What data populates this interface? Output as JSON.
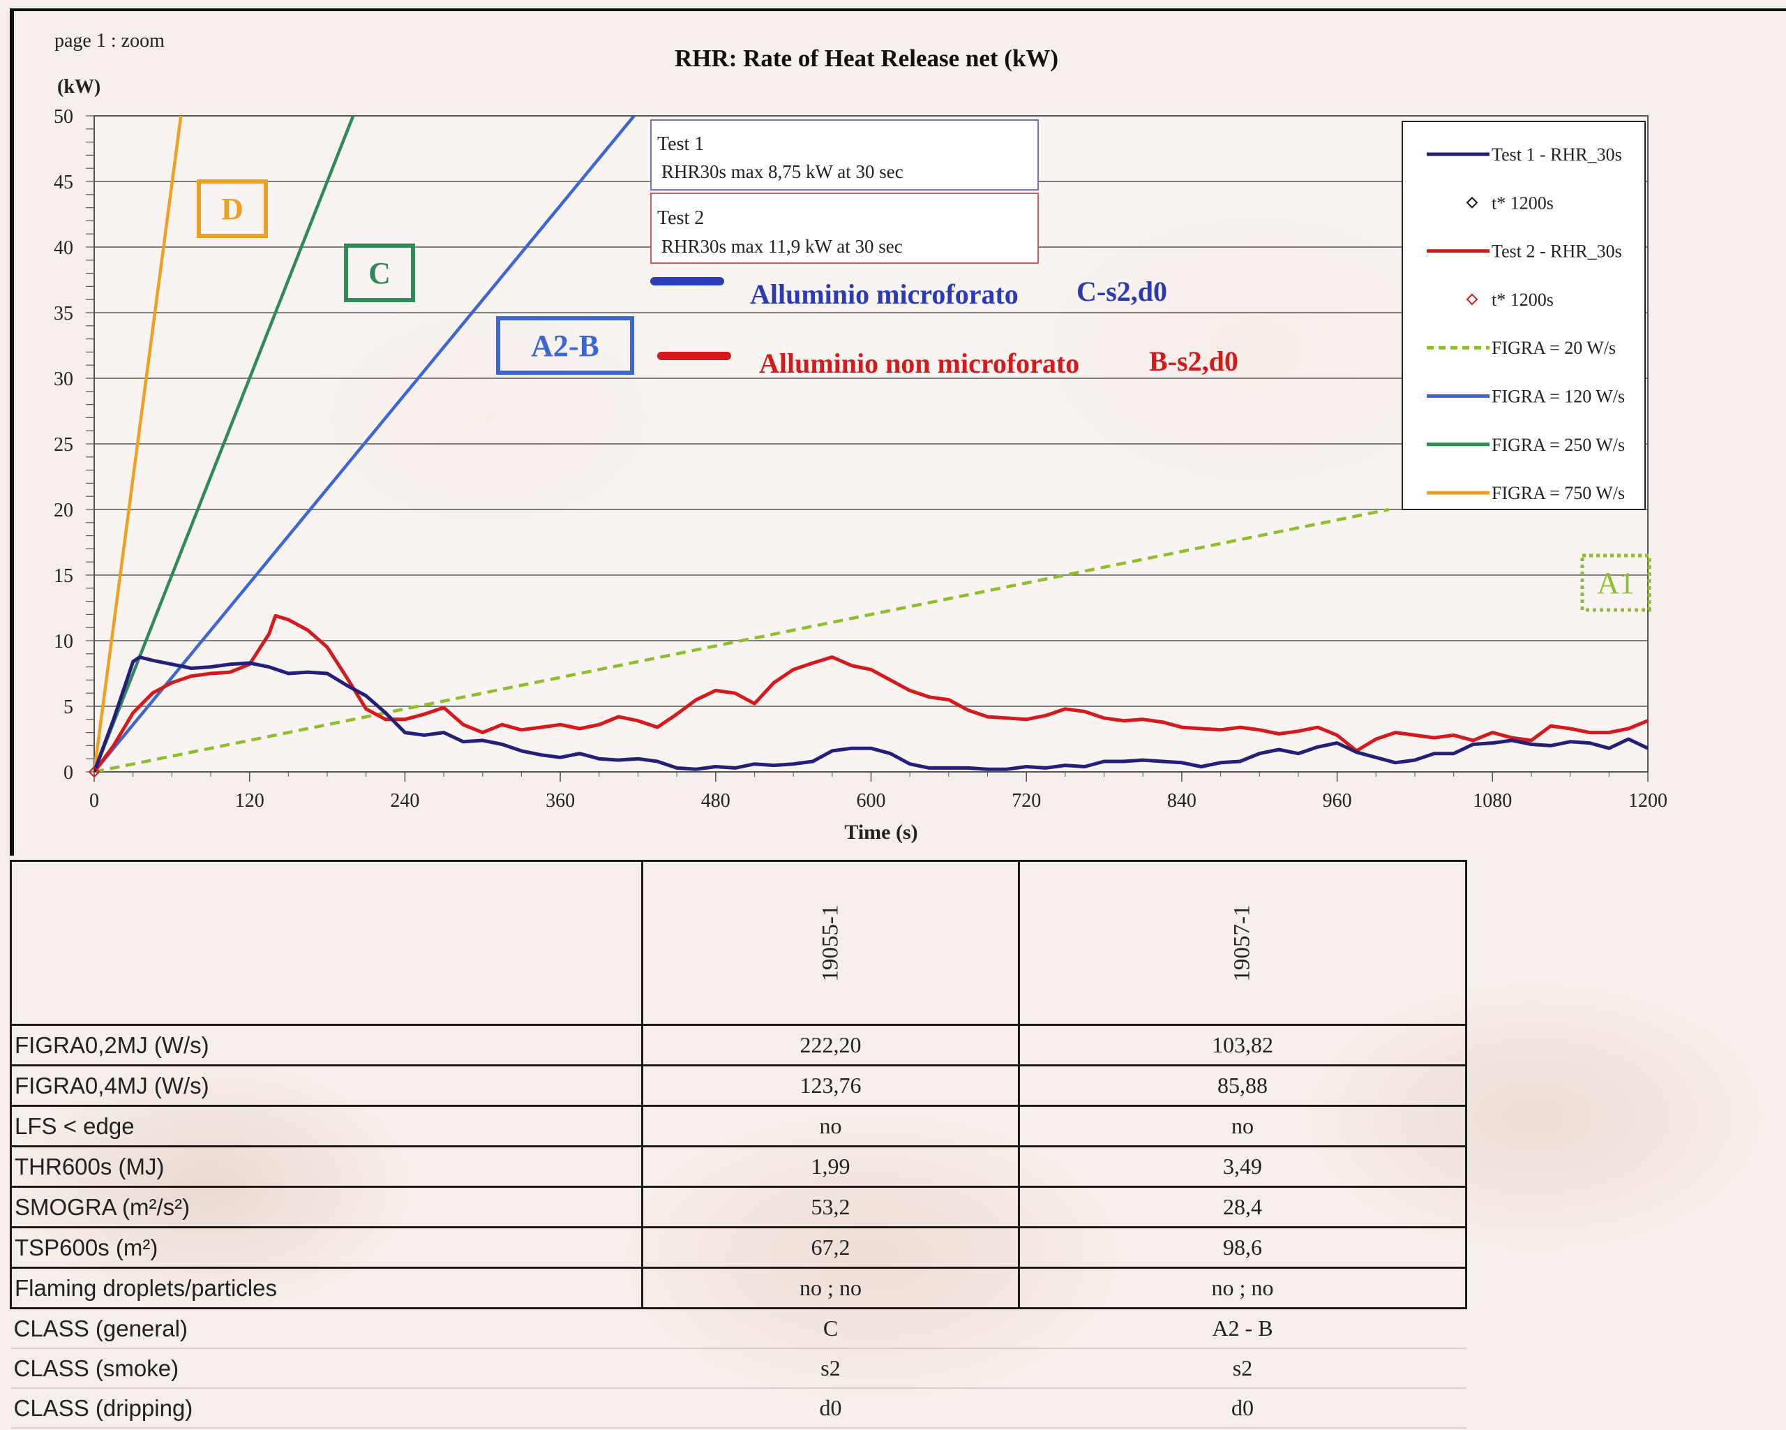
{
  "page_label": "page 1 : zoom",
  "chart_data": {
    "type": "line",
    "title": "RHR: Rate of Heat Release net (kW)",
    "ylabel": "(kW)",
    "xlabel": "Time (s)",
    "xlim": [
      0,
      1200
    ],
    "ylim": [
      0,
      50
    ],
    "x_ticks": [
      "0",
      "120",
      "240",
      "360",
      "480",
      "600",
      "720",
      "840",
      "960",
      "1080",
      "1200"
    ],
    "y_ticks": [
      "0",
      "5",
      "10",
      "15",
      "20",
      "25",
      "30",
      "35",
      "40",
      "45",
      "50"
    ],
    "grid": "horizontal",
    "series": [
      {
        "name": "Test 1 - RHR_30s",
        "color": "#24207a",
        "x": [
          0,
          15,
          30,
          35,
          45,
          60,
          75,
          90,
          105,
          120,
          135,
          150,
          165,
          180,
          195,
          210,
          225,
          240,
          255,
          270,
          285,
          300,
          315,
          330,
          345,
          360,
          375,
          390,
          405,
          420,
          435,
          450,
          465,
          480,
          495,
          510,
          525,
          540,
          555,
          570,
          585,
          600,
          615,
          630,
          645,
          660,
          675,
          690,
          705,
          720,
          735,
          750,
          765,
          780,
          795,
          810,
          825,
          840,
          855,
          870,
          885,
          900,
          915,
          930,
          945,
          960,
          975,
          990,
          1005,
          1020,
          1035,
          1050,
          1065,
          1080,
          1095,
          1110,
          1125,
          1140,
          1155,
          1170,
          1185,
          1200
        ],
        "y": [
          0,
          4,
          8.4,
          8.75,
          8.5,
          8.2,
          7.9,
          8.0,
          8.2,
          8.3,
          8.0,
          7.5,
          7.6,
          7.5,
          6.6,
          5.8,
          4.5,
          3.0,
          2.8,
          3.0,
          2.3,
          2.4,
          2.1,
          1.6,
          1.3,
          1.1,
          1.4,
          1.0,
          0.9,
          1.0,
          0.8,
          0.3,
          0.2,
          0.4,
          0.3,
          0.6,
          0.5,
          0.6,
          0.8,
          1.6,
          1.8,
          1.8,
          1.4,
          0.6,
          0.3,
          0.3,
          0.3,
          0.2,
          0.2,
          0.4,
          0.3,
          0.5,
          0.4,
          0.8,
          0.8,
          0.9,
          0.8,
          0.7,
          0.4,
          0.7,
          0.8,
          1.4,
          1.7,
          1.4,
          1.9,
          2.2,
          1.5,
          1.1,
          0.7,
          0.9,
          1.4,
          1.4,
          2.1,
          2.2,
          2.4,
          2.1,
          2.0,
          2.3,
          2.2,
          1.8,
          2.5,
          1.8
        ]
      },
      {
        "name": "Test 2 - RHR_30s",
        "color": "#d41a1a",
        "x": [
          0,
          15,
          30,
          45,
          60,
          75,
          90,
          105,
          120,
          135,
          140,
          150,
          165,
          180,
          195,
          210,
          225,
          240,
          255,
          270,
          285,
          300,
          315,
          330,
          345,
          360,
          375,
          390,
          405,
          420,
          435,
          450,
          465,
          480,
          495,
          510,
          525,
          540,
          555,
          570,
          585,
          600,
          615,
          630,
          645,
          660,
          675,
          690,
          705,
          720,
          735,
          750,
          765,
          780,
          795,
          810,
          825,
          840,
          855,
          870,
          885,
          900,
          915,
          930,
          945,
          960,
          975,
          990,
          1005,
          1020,
          1035,
          1050,
          1065,
          1080,
          1095,
          1110,
          1125,
          1140,
          1155,
          1170,
          1185,
          1200
        ],
        "y": [
          0,
          2,
          4.5,
          6,
          6.8,
          7.3,
          7.5,
          7.6,
          8.2,
          10.5,
          11.9,
          11.6,
          10.8,
          9.5,
          7.2,
          4.8,
          4.0,
          4.0,
          4.4,
          4.9,
          3.6,
          3.0,
          3.6,
          3.2,
          3.4,
          3.6,
          3.3,
          3.6,
          4.2,
          3.9,
          3.4,
          4.4,
          5.5,
          6.2,
          6.0,
          5.2,
          6.8,
          7.8,
          8.3,
          8.75,
          8.1,
          7.8,
          7.0,
          6.2,
          5.7,
          5.5,
          4.7,
          4.2,
          4.1,
          4.0,
          4.3,
          4.8,
          4.6,
          4.1,
          3.9,
          4.0,
          3.8,
          3.4,
          3.3,
          3.2,
          3.4,
          3.2,
          2.9,
          3.1,
          3.4,
          2.8,
          1.6,
          2.5,
          3.0,
          2.8,
          2.6,
          2.8,
          2.4,
          3.0,
          2.6,
          2.4,
          3.5,
          3.3,
          3.0,
          3.0,
          3.3,
          3.9
        ]
      },
      {
        "name": "FIGRA = 20 W/s",
        "color": "#8ebf2a",
        "style": "dashed",
        "x": [
          0,
          1000
        ],
        "y": [
          0,
          20
        ]
      },
      {
        "name": "FIGRA = 120 W/s",
        "color": "#3b67d4",
        "x": [
          0,
          417
        ],
        "y": [
          0,
          50
        ]
      },
      {
        "name": "FIGRA = 250 W/s",
        "color": "#2e8b57",
        "x": [
          0,
          200
        ],
        "y": [
          0,
          50
        ]
      },
      {
        "name": "FIGRA = 750 W/s",
        "color": "#f0a020",
        "x": [
          0,
          67
        ],
        "y": [
          0,
          50
        ]
      }
    ],
    "markers": [
      {
        "name": "t* 1200s",
        "series": "Test 1",
        "color": "#111111"
      },
      {
        "name": "t* 1200s",
        "series": "Test 2",
        "color": "#d41a1a"
      }
    ],
    "legend_position": "top-right",
    "legend": [
      {
        "label": "Test 1 - RHR_30s",
        "color": "#24207a",
        "kind": "line"
      },
      {
        "label": "t* 1200s",
        "color": "#111111",
        "kind": "diamond"
      },
      {
        "label": "Test 2 - RHR_30s",
        "color": "#d41a1a",
        "kind": "line"
      },
      {
        "label": "t* 1200s",
        "color": "#d41a1a",
        "kind": "diamond"
      },
      {
        "label": "FIGRA = 20 W/s",
        "color": "#8ebf2a",
        "kind": "dashed"
      },
      {
        "label": "FIGRA = 120 W/s",
        "color": "#3b67d4",
        "kind": "line"
      },
      {
        "label": "FIGRA = 250 W/s",
        "color": "#2e8b57",
        "kind": "line"
      },
      {
        "label": "FIGRA = 750 W/s",
        "color": "#f0a020",
        "kind": "line"
      }
    ],
    "annotations": [
      {
        "title": "Test 1",
        "text": "RHR30s max 8,75 kW at 30 sec"
      },
      {
        "title": "Test 2",
        "text": "RHR30s max 11,9 kW at 30 sec"
      }
    ],
    "class_boxes": [
      {
        "label": "D",
        "color": "#f0a020",
        "style": "solid"
      },
      {
        "label": "C",
        "color": "#2e8b57",
        "style": "solid"
      },
      {
        "label": "A2-B",
        "color": "#3b67d4",
        "style": "solid"
      },
      {
        "label": "A1",
        "color": "#8ebf2a",
        "style": "dotted"
      }
    ],
    "material_labels": [
      {
        "name": "Alluminio microforato",
        "class": "C-s2,d0",
        "color": "#2b3ab5"
      },
      {
        "name": "Alluminio non microforato",
        "class": "B-s2,d0",
        "color": "#d41a1a"
      }
    ]
  },
  "table": {
    "columns": [
      "19055-1",
      "19057-1"
    ],
    "rows": [
      {
        "label": "FIGRA0,2MJ (W/s)",
        "values": [
          "222,20",
          "103,82"
        ]
      },
      {
        "label": "FIGRA0,4MJ (W/s)",
        "values": [
          "123,76",
          "85,88"
        ]
      },
      {
        "label": "LFS < edge",
        "values": [
          "no",
          "no"
        ]
      },
      {
        "label": "THR600s (MJ)",
        "values": [
          "1,99",
          "3,49"
        ]
      },
      {
        "label": "SMOGRA (m²/s²)",
        "values": [
          "53,2",
          "28,4"
        ]
      },
      {
        "label": "TSP600s (m²)",
        "values": [
          "67,2",
          "98,6"
        ]
      },
      {
        "label": "Flaming droplets/particles",
        "values": [
          "no ; no",
          "no ; no"
        ]
      },
      {
        "label": "CLASS  (general)",
        "values": [
          "C",
          "A2 - B"
        ]
      },
      {
        "label": "CLASS  (smoke)",
        "values": [
          "s2",
          "s2"
        ]
      },
      {
        "label": "CLASS  (dripping)",
        "values": [
          "d0",
          "d0"
        ]
      }
    ]
  }
}
